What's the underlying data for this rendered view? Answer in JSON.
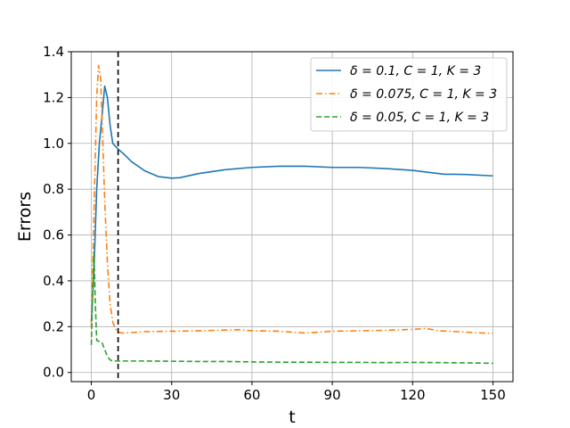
{
  "chart_data": {
    "type": "line",
    "xlabel": "t",
    "ylabel": "Errors",
    "xlim": [
      -7.5,
      157.5
    ],
    "ylim": [
      -0.04,
      1.4
    ],
    "xticks": [
      0,
      30,
      60,
      90,
      120,
      150
    ],
    "yticks": [
      0.0,
      0.2,
      0.4,
      0.6,
      0.8,
      1.0,
      1.2,
      1.4
    ],
    "xtick_labels": [
      "0",
      "30",
      "60",
      "90",
      "120",
      "150"
    ],
    "ytick_labels": [
      "0.0",
      "0.2",
      "0.4",
      "0.6",
      "0.8",
      "1.0",
      "1.2",
      "1.4"
    ],
    "grid": true,
    "legend_position": "top-right",
    "vline": {
      "x": 10,
      "style": "dashed",
      "color": "#000000"
    },
    "series": [
      {
        "name": "δ = 0.1, C = 1, K = 3",
        "color": "#1f77b4",
        "style": "solid",
        "x": [
          0,
          1,
          2,
          3,
          4,
          5,
          6,
          7,
          8,
          10,
          12,
          15,
          20,
          25,
          30,
          33,
          40,
          50,
          60,
          70,
          80,
          90,
          100,
          110,
          120,
          127,
          132,
          135,
          140,
          150
        ],
        "y": [
          0.22,
          0.45,
          0.8,
          1.0,
          1.12,
          1.25,
          1.2,
          1.08,
          1.0,
          0.975,
          0.955,
          0.92,
          0.88,
          0.855,
          0.848,
          0.85,
          0.868,
          0.885,
          0.895,
          0.9,
          0.9,
          0.895,
          0.895,
          0.89,
          0.882,
          0.872,
          0.865,
          0.865,
          0.864,
          0.858
        ]
      },
      {
        "name": "δ = 0.075, C = 1, K = 3",
        "color": "#ff7f0e",
        "style": "dashdot",
        "x": [
          0,
          1,
          2,
          2.7,
          3.5,
          5,
          6,
          7,
          8,
          9,
          10,
          12,
          20,
          30,
          40,
          50,
          55,
          60,
          70,
          80,
          90,
          100,
          110,
          120,
          125,
          130,
          140,
          150
        ],
        "y": [
          0.2,
          0.7,
          1.2,
          1.34,
          1.28,
          0.75,
          0.48,
          0.3,
          0.22,
          0.19,
          0.175,
          0.172,
          0.178,
          0.18,
          0.182,
          0.185,
          0.187,
          0.182,
          0.18,
          0.172,
          0.18,
          0.182,
          0.184,
          0.188,
          0.192,
          0.182,
          0.176,
          0.17
        ]
      },
      {
        "name": "δ = 0.05, C = 1, K = 3",
        "color": "#2ca02c",
        "style": "dashed",
        "x": [
          0,
          0.5,
          1,
          1.5,
          2,
          3,
          4,
          5,
          6,
          7,
          8,
          10,
          20,
          30,
          40,
          50,
          60,
          70,
          80,
          90,
          100,
          110,
          120,
          130,
          140,
          150
        ],
        "y": [
          0.12,
          0.35,
          0.52,
          0.3,
          0.14,
          0.135,
          0.13,
          0.1,
          0.07,
          0.055,
          0.05,
          0.05,
          0.05,
          0.049,
          0.048,
          0.048,
          0.046,
          0.045,
          0.045,
          0.044,
          0.044,
          0.043,
          0.044,
          0.043,
          0.042,
          0.04
        ]
      }
    ]
  }
}
